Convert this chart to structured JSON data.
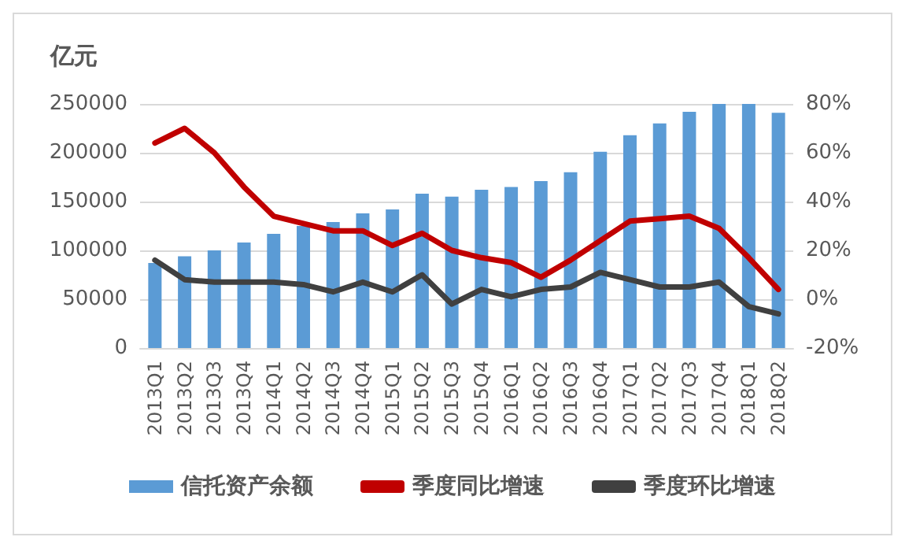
{
  "chart_data": {
    "type": "bar",
    "ylabel": "亿元",
    "categories": [
      "2013Q1",
      "2013Q2",
      "2013Q3",
      "2013Q4",
      "2014Q1",
      "2014Q2",
      "2014Q3",
      "2014Q4",
      "2015Q1",
      "2015Q2",
      "2015Q3",
      "2015Q4",
      "2016Q1",
      "2016Q2",
      "2016Q3",
      "2016Q4",
      "2017Q1",
      "2017Q2",
      "2017Q3",
      "2017Q4",
      "2018Q1",
      "2018Q2"
    ],
    "series": [
      {
        "name": "信托资产余额",
        "color": "#5b9bd5",
        "values": [
          87000,
          94000,
          100000,
          108000,
          117000,
          125000,
          129000,
          138000,
          142000,
          158000,
          155000,
          162000,
          165000,
          171000,
          180000,
          201000,
          218000,
          230000,
          242000,
          250000,
          250000,
          241000
        ]
      },
      {
        "name": "季度同比增速",
        "type": "line",
        "axis": "y2",
        "color": "#c00000",
        "values": [
          64,
          70,
          60,
          46,
          34,
          31,
          28,
          28,
          22,
          27,
          20,
          17,
          15,
          9,
          16,
          24,
          32,
          33,
          34,
          29,
          17,
          4
        ]
      },
      {
        "name": "季度环比增速",
        "type": "line",
        "axis": "y2",
        "color": "#404040",
        "values": [
          16,
          8,
          7,
          7,
          7,
          6,
          3,
          7,
          3,
          10,
          -2,
          4,
          1,
          4,
          5,
          11,
          8,
          5,
          5,
          7,
          -3,
          -6
        ]
      }
    ],
    "ylim": [
      0,
      250000
    ],
    "yticks": [
      0,
      50000,
      100000,
      150000,
      200000,
      250000
    ],
    "y2lim": [
      -20,
      80
    ],
    "y2ticks": [
      {
        "value": -20,
        "label": "-20%"
      },
      {
        "value": 0,
        "label": "0%"
      },
      {
        "value": 20,
        "label": "20%"
      },
      {
        "value": 40,
        "label": "40%"
      },
      {
        "value": 60,
        "label": "60%"
      },
      {
        "value": 80,
        "label": "80%"
      }
    ],
    "grid": "y",
    "legend": "bottom",
    "marker": "none",
    "line_style": "solid"
  }
}
